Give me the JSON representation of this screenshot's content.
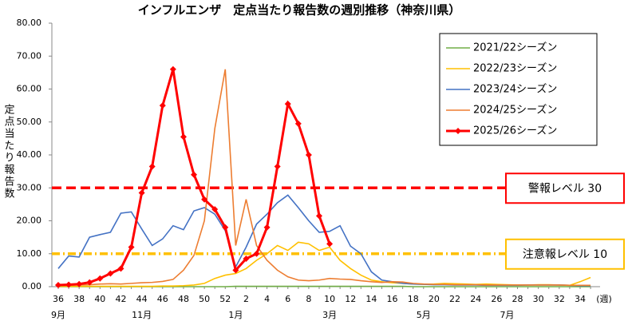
{
  "chart_data": {
    "type": "line",
    "title": "インフルエンザ　定点当たり報告数の週別推移（神奈川県）",
    "y_label": "定点当たり報告数",
    "x_unit": "(週)",
    "categories": [
      "36",
      null,
      "38",
      null,
      "40",
      null,
      "42",
      null,
      "44",
      null,
      "46",
      null,
      "48",
      null,
      "50",
      null,
      "52",
      null,
      "2",
      null,
      "4",
      null,
      "6",
      null,
      "8",
      null,
      "10",
      null,
      "12",
      null,
      "14",
      null,
      "16",
      null,
      "18",
      null,
      "20",
      null,
      "22",
      null,
      "24",
      null,
      "26",
      null,
      "28",
      null,
      "30",
      null,
      "32",
      null,
      "34",
      null
    ],
    "month_labels": [
      "9月",
      null,
      null,
      null,
      null,
      null,
      null,
      null,
      "11月",
      null,
      null,
      null,
      null,
      null,
      null,
      null,
      null,
      "1月",
      null,
      null,
      null,
      null,
      null,
      null,
      null,
      null,
      "3月",
      null,
      null,
      null,
      null,
      null,
      null,
      null,
      null,
      "5月",
      null,
      null,
      null,
      null,
      null,
      null,
      null,
      "7月",
      null,
      null,
      null,
      null,
      null,
      null,
      null,
      null
    ],
    "ylim": [
      0,
      80
    ],
    "yticks": [
      {
        "value": 0,
        "label": "0.00"
      },
      {
        "value": 10,
        "label": "10.00"
      },
      {
        "value": 20,
        "label": "20.00"
      },
      {
        "value": 30,
        "label": "30.00"
      },
      {
        "value": 40,
        "label": "40.00"
      },
      {
        "value": 50,
        "label": "50.00"
      },
      {
        "value": 60,
        "label": "60.00"
      },
      {
        "value": 70,
        "label": "70.00"
      },
      {
        "value": 80,
        "label": "80.00"
      }
    ],
    "grid": false,
    "legend": "top-right",
    "series": [
      {
        "name": "2021/22シーズン",
        "color": "#70ad47",
        "values": [
          0,
          0,
          0,
          0,
          0,
          0,
          0,
          0,
          0,
          0,
          0,
          0,
          0,
          0,
          0,
          0,
          0,
          0.1,
          0.1,
          0.1,
          0.1,
          0.1,
          0.1,
          0.1,
          0.1,
          0.1,
          0.1,
          0.1,
          0.1,
          0.1,
          0.1,
          0.1,
          0.1,
          0.1,
          0,
          0,
          0,
          0,
          0,
          0,
          0,
          0,
          0,
          0,
          0,
          0,
          0,
          0,
          0,
          0,
          0,
          0
        ]
      },
      {
        "name": "2022/23シーズン",
        "color": "#ffc000",
        "values": [
          0.1,
          0.1,
          0.1,
          0.1,
          0.1,
          0.1,
          0.1,
          0.1,
          0.1,
          0.1,
          0.2,
          0.2,
          0.3,
          0.5,
          1.0,
          2.5,
          3.5,
          4.0,
          5.5,
          8.0,
          10.0,
          12.5,
          11.0,
          13.5,
          13.0,
          11.0,
          12.0,
          8.0,
          5.5,
          3.5,
          2.0,
          1.5,
          1.2,
          1.0,
          0.8,
          0.7,
          0.8,
          1.0,
          0.9,
          0.8,
          0.7,
          0.8,
          0.7,
          0.6,
          0.5,
          0.5,
          0.6,
          0.6,
          0.5,
          0.4,
          1.5,
          2.8
        ]
      },
      {
        "name": "2023/24シーズン",
        "color": "#4472c4",
        "values": [
          5.5,
          9.3,
          9.0,
          15.0,
          15.8,
          16.5,
          22.3,
          22.7,
          17.5,
          12.5,
          14.5,
          18.5,
          17.3,
          23.0,
          24.0,
          22.0,
          17.0,
          6.0,
          12.0,
          19.0,
          22.0,
          25.5,
          27.8,
          24.0,
          20.0,
          16.5,
          16.8,
          18.5,
          12.3,
          10.0,
          4.5,
          2.0,
          1.5,
          1.0,
          0.8,
          0.7,
          0.6,
          0.6,
          0.5,
          0.5,
          0.5,
          0.4,
          0.4,
          0.4,
          0.4,
          0.5,
          0.5,
          0.5,
          0.5,
          0.4,
          0.3,
          0.3
        ]
      },
      {
        "name": "2024/25シーズン",
        "color": "#ed7d31",
        "values": [
          0.3,
          0.4,
          0.5,
          0.6,
          0.8,
          0.9,
          0.8,
          1.0,
          1.2,
          1.3,
          1.6,
          2.2,
          5.0,
          9.5,
          20.0,
          48.0,
          66.0,
          12.5,
          26.5,
          12.5,
          8.0,
          5.0,
          3.0,
          2.0,
          1.8,
          2.0,
          2.5,
          2.3,
          2.2,
          1.8,
          1.5,
          1.3,
          1.5,
          1.4,
          1.0,
          0.8,
          0.7,
          0.7,
          0.6,
          0.6,
          0.6,
          0.5,
          0.5,
          0.5,
          0.5,
          0.5,
          0.5,
          0.5,
          0.5,
          0.4,
          0.4,
          0.4
        ]
      },
      {
        "name": "2025/26シーズン",
        "color": "#ff0000",
        "values": [
          0.5,
          0.6,
          0.8,
          1.3,
          2.5,
          4.0,
          5.5,
          12.0,
          28.5,
          36.5,
          55.0,
          66.0,
          45.5,
          34.0,
          26.5,
          23.5,
          18.0,
          5.0,
          8.5,
          10.0,
          18.0,
          36.5,
          55.5,
          49.5,
          40.0,
          21.5,
          13.0,
          null,
          null,
          null,
          null,
          null,
          null,
          null,
          null,
          null,
          null,
          null,
          null,
          null,
          null,
          null,
          null,
          null,
          null,
          null,
          null,
          null,
          null,
          null,
          null,
          null
        ]
      }
    ],
    "reference_lines": [
      {
        "value": 30,
        "label": "警報レベル 30",
        "color": "#ff0000"
      },
      {
        "value": 10,
        "label": "注意報レベル 10",
        "color": "#ffc000"
      }
    ]
  }
}
